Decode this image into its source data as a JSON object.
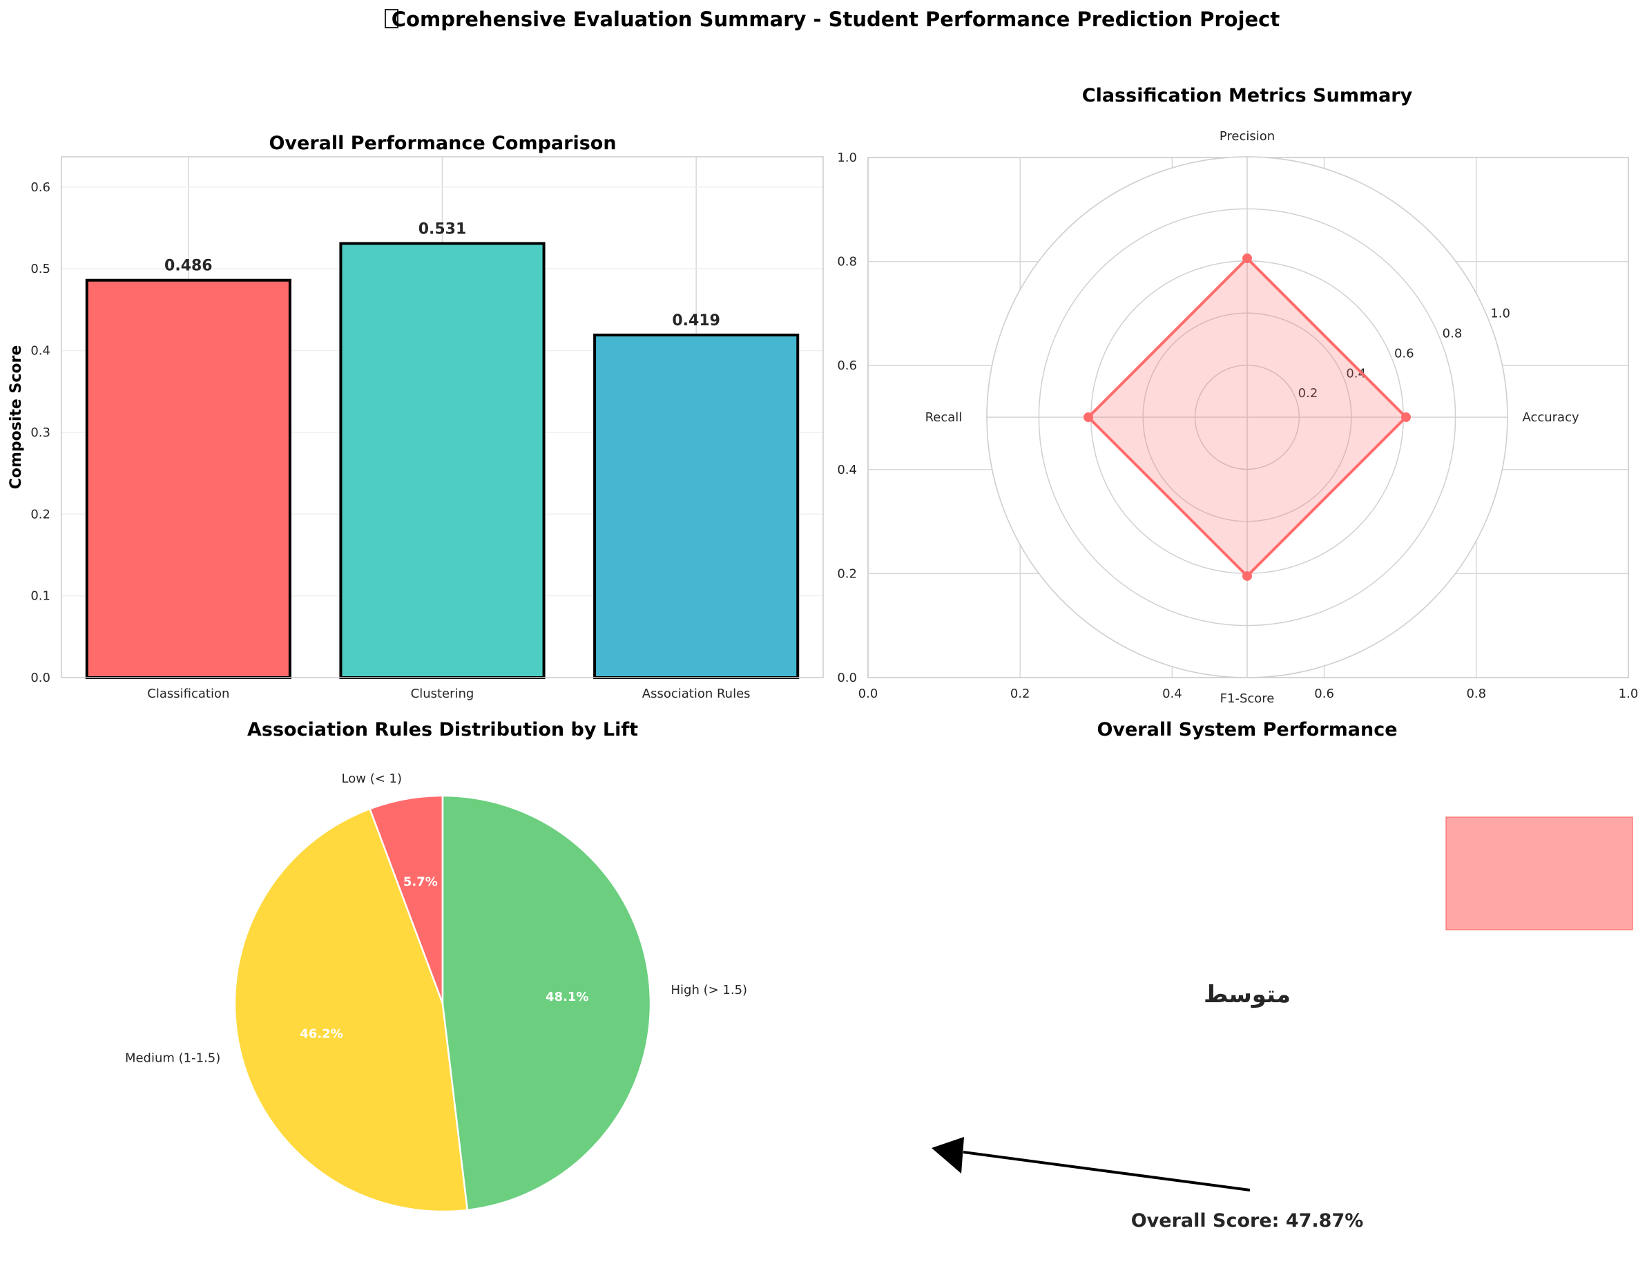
{
  "figure": {
    "title": "Comprehensive Evaluation Summary - Student Performance Prediction Project",
    "title_icon": "missing-glyph-box"
  },
  "chart_data": [
    {
      "type": "bar",
      "title": "Overall Performance Comparison",
      "xlabel": "",
      "ylabel": "Composite Score",
      "categories": [
        "Classification",
        "Clustering",
        "Association Rules"
      ],
      "values": [
        0.486,
        0.531,
        0.419
      ],
      "value_labels": [
        "0.486",
        "0.531",
        "0.419"
      ],
      "colors": [
        "#FF6B6B",
        "#4ECDC4",
        "#45B7D1"
      ],
      "ylim": [
        0,
        0.637
      ],
      "yticks": [
        "0.0",
        "0.1",
        "0.2",
        "0.3",
        "0.4",
        "0.5",
        "0.6"
      ],
      "grid": true
    },
    {
      "type": "radar",
      "title": "Classification Metrics Summary",
      "axes": [
        "Accuracy",
        "Precision",
        "Recall",
        "F1-Score"
      ],
      "values": [
        0.61,
        0.61,
        0.61,
        0.61
      ],
      "rlim": [
        0,
        1
      ],
      "rticks": [
        "0.2",
        "0.4",
        "0.6",
        "0.8",
        "1.0"
      ],
      "background_xticks": [
        "0.0",
        "0.2",
        "0.4",
        "0.6",
        "0.8",
        "1.0"
      ],
      "background_yticks": [
        "0.0",
        "0.2",
        "0.4",
        "0.6",
        "0.8",
        "1.0"
      ],
      "color": "#FF6B6B"
    },
    {
      "type": "pie",
      "title": "Association Rules Distribution by Lift",
      "labels": [
        "Low (< 1)",
        "Medium (1-1.5)",
        "High (> 1.5)"
      ],
      "values": [
        5.7,
        46.2,
        48.1
      ],
      "pct_labels": [
        "5.7%",
        "46.2%",
        "48.1%"
      ],
      "colors": [
        "#FF6B6B",
        "#FFD93D",
        "#6BCF7F"
      ]
    },
    {
      "type": "gauge",
      "title": "Overall System Performance",
      "rating_text": "متوسط",
      "score_text": "Overall Score: 47.87%",
      "score": 47.87,
      "band_color": "#FF6B6B"
    }
  ]
}
